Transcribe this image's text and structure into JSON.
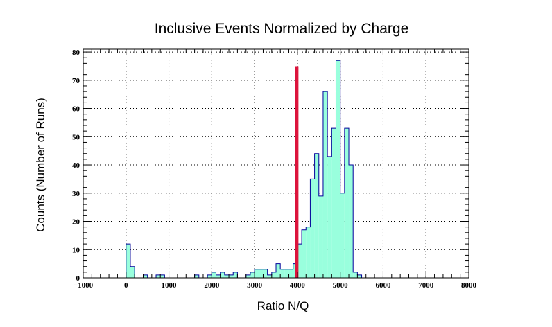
{
  "chart_data": {
    "type": "bar",
    "title": "Inclusive Events Normalized by Charge",
    "xlabel": "Ratio N/Q",
    "ylabel": "Counts (Number of Runs)",
    "xlim": [
      -1000,
      8000
    ],
    "ylim": [
      0,
      81
    ],
    "grid": true,
    "x_ticks": [
      -1000,
      0,
      1000,
      2000,
      3000,
      4000,
      5000,
      6000,
      7000,
      8000
    ],
    "y_ticks": [
      0,
      10,
      20,
      30,
      40,
      50,
      60,
      70,
      80
    ],
    "bin_width": 100,
    "bins": [
      {
        "x": 0,
        "count": 12
      },
      {
        "x": 100,
        "count": 4
      },
      {
        "x": 400,
        "count": 1
      },
      {
        "x": 700,
        "count": 1
      },
      {
        "x": 800,
        "count": 1
      },
      {
        "x": 1600,
        "count": 1
      },
      {
        "x": 1900,
        "count": 1
      },
      {
        "x": 2000,
        "count": 2
      },
      {
        "x": 2100,
        "count": 1
      },
      {
        "x": 2200,
        "count": 2
      },
      {
        "x": 2300,
        "count": 1
      },
      {
        "x": 2400,
        "count": 1
      },
      {
        "x": 2500,
        "count": 2
      },
      {
        "x": 2800,
        "count": 1
      },
      {
        "x": 2900,
        "count": 2
      },
      {
        "x": 3000,
        "count": 3
      },
      {
        "x": 3100,
        "count": 3
      },
      {
        "x": 3200,
        "count": 3
      },
      {
        "x": 3300,
        "count": 1
      },
      {
        "x": 3400,
        "count": 2
      },
      {
        "x": 3500,
        "count": 5
      },
      {
        "x": 3600,
        "count": 3
      },
      {
        "x": 3700,
        "count": 3
      },
      {
        "x": 3800,
        "count": 3
      },
      {
        "x": 3900,
        "count": 5
      },
      {
        "x": 4000,
        "count": 12
      },
      {
        "x": 4100,
        "count": 17
      },
      {
        "x": 4200,
        "count": 18
      },
      {
        "x": 4300,
        "count": 35
      },
      {
        "x": 4400,
        "count": 44
      },
      {
        "x": 4500,
        "count": 29
      },
      {
        "x": 4600,
        "count": 66
      },
      {
        "x": 4700,
        "count": 43
      },
      {
        "x": 4800,
        "count": 53
      },
      {
        "x": 4900,
        "count": 77
      },
      {
        "x": 5000,
        "count": 30
      },
      {
        "x": 5100,
        "count": 53
      },
      {
        "x": 5200,
        "count": 40
      },
      {
        "x": 5300,
        "count": 2
      },
      {
        "x": 5400,
        "count": 1
      }
    ],
    "cut_line": {
      "x": 4000,
      "y_top": 75,
      "color": "#dc143c"
    },
    "colors": {
      "fill": "#99ffdd",
      "outline": "#000099",
      "cut": "#dc143c",
      "grid": "#000000"
    }
  }
}
